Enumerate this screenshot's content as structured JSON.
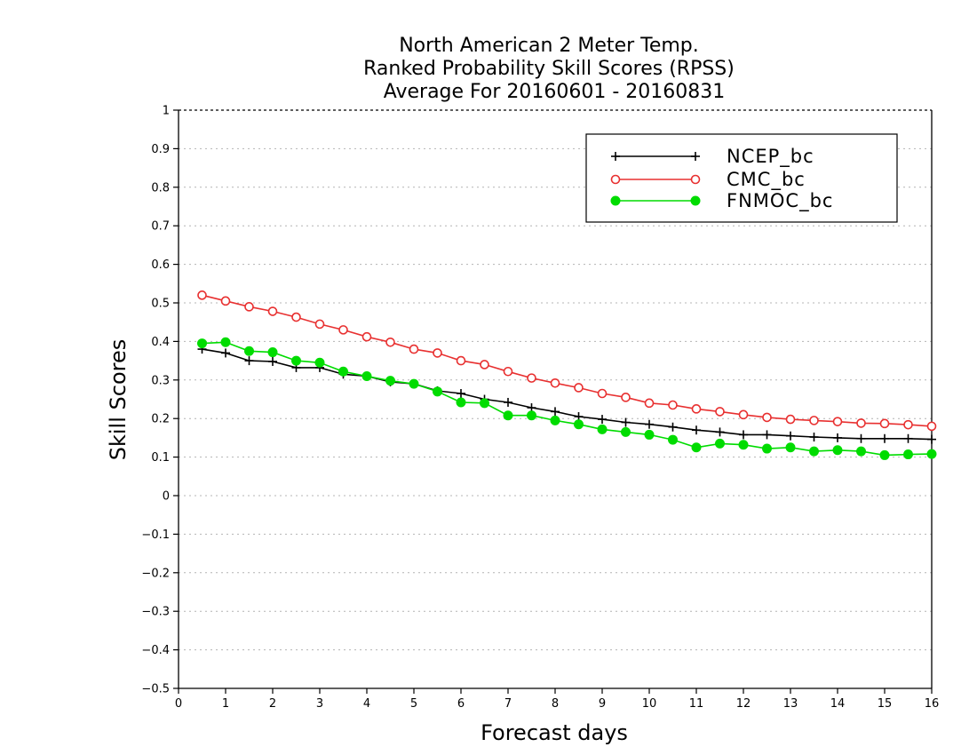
{
  "chart_data": {
    "type": "line",
    "title_lines": [
      "North American 2 Meter Temp.",
      "Ranked Probability Skill Scores (RPSS)",
      "Average For 20160601 - 20160831"
    ],
    "xlabel": "Forecast days",
    "ylabel": "Skill Scores",
    "xlim": [
      0,
      16
    ],
    "ylim": [
      -0.5,
      1
    ],
    "xticks": [
      "0",
      "1",
      "2",
      "3",
      "4",
      "5",
      "6",
      "7",
      "8",
      "9",
      "10",
      "11",
      "12",
      "13",
      "14",
      "15",
      "16"
    ],
    "yticks": [
      "−0.5",
      "−0.4",
      "−0.3",
      "−0.2",
      "−0.1",
      "0",
      "0.1",
      "0.2",
      "0.3",
      "0.4",
      "0.5",
      "0.6",
      "0.7",
      "0.8",
      "0.9",
      "1"
    ],
    "grid": true,
    "legend_position": "top-right",
    "x": [
      0.5,
      1,
      1.5,
      2,
      2.5,
      3,
      3.5,
      4,
      4.5,
      5,
      5.5,
      6,
      6.5,
      7,
      7.5,
      8,
      8.5,
      9,
      9.5,
      10,
      10.5,
      11,
      11.5,
      12,
      12.5,
      13,
      13.5,
      14,
      14.5,
      15,
      15.5,
      16
    ],
    "series": [
      {
        "name": "NCEP_bc",
        "color": "#000000",
        "marker": "plus",
        "values": [
          0.38,
          0.37,
          0.35,
          0.348,
          0.332,
          0.332,
          0.315,
          0.31,
          0.295,
          0.29,
          0.272,
          0.265,
          0.25,
          0.242,
          0.228,
          0.218,
          0.205,
          0.198,
          0.19,
          0.185,
          0.178,
          0.17,
          0.165,
          0.158,
          0.158,
          0.155,
          0.152,
          0.15,
          0.148,
          0.148,
          0.148,
          0.146
        ]
      },
      {
        "name": "CMC_bc",
        "color": "#e83030",
        "marker": "open-circle",
        "values": [
          0.52,
          0.505,
          0.49,
          0.478,
          0.463,
          0.445,
          0.43,
          0.412,
          0.398,
          0.38,
          0.37,
          0.35,
          0.34,
          0.322,
          0.305,
          0.292,
          0.28,
          0.265,
          0.255,
          0.24,
          0.235,
          0.225,
          0.218,
          0.21,
          0.203,
          0.198,
          0.195,
          0.192,
          0.188,
          0.187,
          0.184,
          0.18
        ]
      },
      {
        "name": "FNMOC_bc",
        "color": "#00dc00",
        "marker": "filled-circle",
        "values": [
          0.395,
          0.398,
          0.375,
          0.372,
          0.35,
          0.345,
          0.322,
          0.31,
          0.298,
          0.29,
          0.27,
          0.242,
          0.24,
          0.208,
          0.208,
          0.195,
          0.185,
          0.172,
          0.165,
          0.158,
          0.145,
          0.125,
          0.135,
          0.132,
          0.122,
          0.125,
          0.115,
          0.118,
          0.115,
          0.105,
          0.107,
          0.108
        ]
      }
    ]
  }
}
